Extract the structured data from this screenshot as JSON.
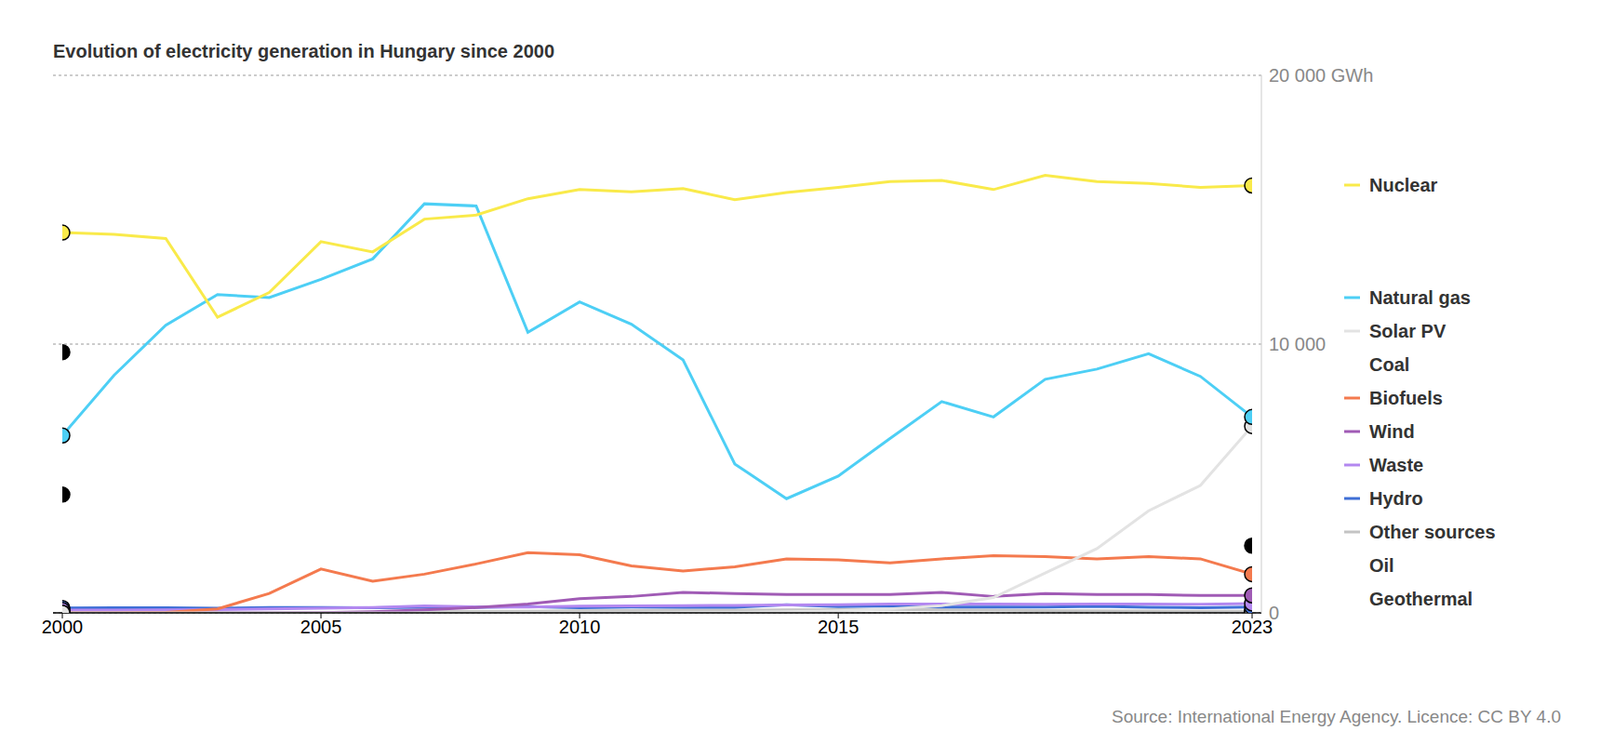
{
  "chart_data": {
    "type": "line",
    "title": "Evolution of electricity generation in Hungary since 2000",
    "source": "Source: International Energy Agency. Licence: CC BY 4.0",
    "x": [
      2000,
      2001,
      2002,
      2003,
      2004,
      2005,
      2006,
      2007,
      2008,
      2009,
      2010,
      2011,
      2012,
      2013,
      2014,
      2015,
      2016,
      2017,
      2018,
      2019,
      2020,
      2021,
      2022,
      2023
    ],
    "xlim": [
      2000,
      2023
    ],
    "xticks": [
      2000,
      2005,
      2010,
      2015,
      2023
    ],
    "ylim": [
      0,
      20000
    ],
    "yticks": [
      0,
      {
        "value": 10000,
        "label": "10 000"
      },
      {
        "value": 20000,
        "label": "20 000 GWh"
      }
    ],
    "grid": true,
    "legend": "right",
    "marker": "circle_ends",
    "series": [
      {
        "name": "Nuclear",
        "color": "#f9ea4a",
        "line_style": "solid",
        "values": [
          14150,
          14080,
          13930,
          11000,
          11920,
          13810,
          13430,
          14650,
          14800,
          15410,
          15750,
          15670,
          15790,
          15370,
          15640,
          15830,
          16050,
          16090,
          15750,
          16280,
          16050,
          15980,
          15830,
          15900
        ]
      },
      {
        "name": "Natural gas",
        "color": "#4dcff5",
        "line_style": "solid",
        "values": [
          6600,
          8840,
          10700,
          11840,
          11730,
          12410,
          13170,
          15220,
          15140,
          10440,
          11570,
          10740,
          9410,
          5540,
          4250,
          5090,
          6490,
          7860,
          7290,
          8690,
          9070,
          9640,
          8800,
          7290
        ]
      },
      {
        "name": "Solar PV",
        "color": "#e3e3e3",
        "line_style": "solid",
        "values": [
          0,
          0,
          0,
          0,
          0,
          0,
          0,
          0,
          0,
          0,
          0,
          0,
          0,
          20,
          40,
          76,
          150,
          270,
          570,
          1480,
          2390,
          3800,
          4740,
          6950
        ]
      },
      {
        "name": "Coal",
        "color": "#000000",
        "line_style": "none",
        "values": [
          9700,
          null,
          null,
          null,
          null,
          null,
          null,
          null,
          null,
          null,
          null,
          null,
          null,
          null,
          null,
          null,
          null,
          null,
          null,
          null,
          null,
          null,
          null,
          2500
        ]
      },
      {
        "name": "Biofuels",
        "color": "#f47a4e",
        "line_style": "solid",
        "values": [
          0,
          0,
          20,
          150,
          720,
          1630,
          1180,
          1440,
          1820,
          2240,
          2160,
          1750,
          1560,
          1710,
          2010,
          1970,
          1860,
          2010,
          2130,
          2090,
          2010,
          2090,
          2010,
          1440
        ]
      },
      {
        "name": "Wind",
        "color": "#a05bb5",
        "line_style": "solid",
        "values": [
          0,
          0,
          0,
          0,
          0,
          10,
          40,
          110,
          200,
          330,
          530,
          610,
          760,
          720,
          680,
          680,
          680,
          760,
          610,
          720,
          680,
          680,
          650,
          650
        ]
      },
      {
        "name": "Waste",
        "color": "#b388f0",
        "line_style": "solid",
        "values": [
          100,
          100,
          110,
          120,
          150,
          170,
          200,
          260,
          220,
          220,
          250,
          260,
          270,
          280,
          290,
          300,
          330,
          330,
          330,
          320,
          330,
          330,
          320,
          350
        ]
      },
      {
        "name": "Hydro",
        "color": "#3f6fd6",
        "line_style": "solid",
        "values": [
          180,
          190,
          190,
          170,
          200,
          200,
          190,
          210,
          210,
          230,
          190,
          220,
          210,
          210,
          300,
          230,
          260,
          220,
          220,
          220,
          240,
          210,
          190,
          220
        ]
      },
      {
        "name": "Other sources",
        "color": "#c4c4c4",
        "line_style": "solid",
        "values": [
          0,
          0,
          0,
          0,
          10,
          20,
          30,
          40,
          50,
          60,
          80,
          90,
          100,
          100,
          110,
          120,
          130,
          110,
          100,
          90,
          80,
          70,
          60,
          60
        ]
      },
      {
        "name": "Oil",
        "color": "#000000",
        "line_style": "none",
        "values": [
          4400,
          null,
          null,
          null,
          null,
          null,
          null,
          null,
          null,
          null,
          null,
          null,
          null,
          null,
          null,
          null,
          null,
          null,
          null,
          null,
          null,
          null,
          null,
          40
        ]
      },
      {
        "name": "Geothermal",
        "color": "#000000",
        "line_style": "none",
        "values": [
          0,
          null,
          null,
          null,
          null,
          null,
          null,
          null,
          null,
          null,
          null,
          null,
          null,
          null,
          null,
          null,
          null,
          null,
          null,
          null,
          null,
          null,
          null,
          30
        ]
      }
    ]
  }
}
